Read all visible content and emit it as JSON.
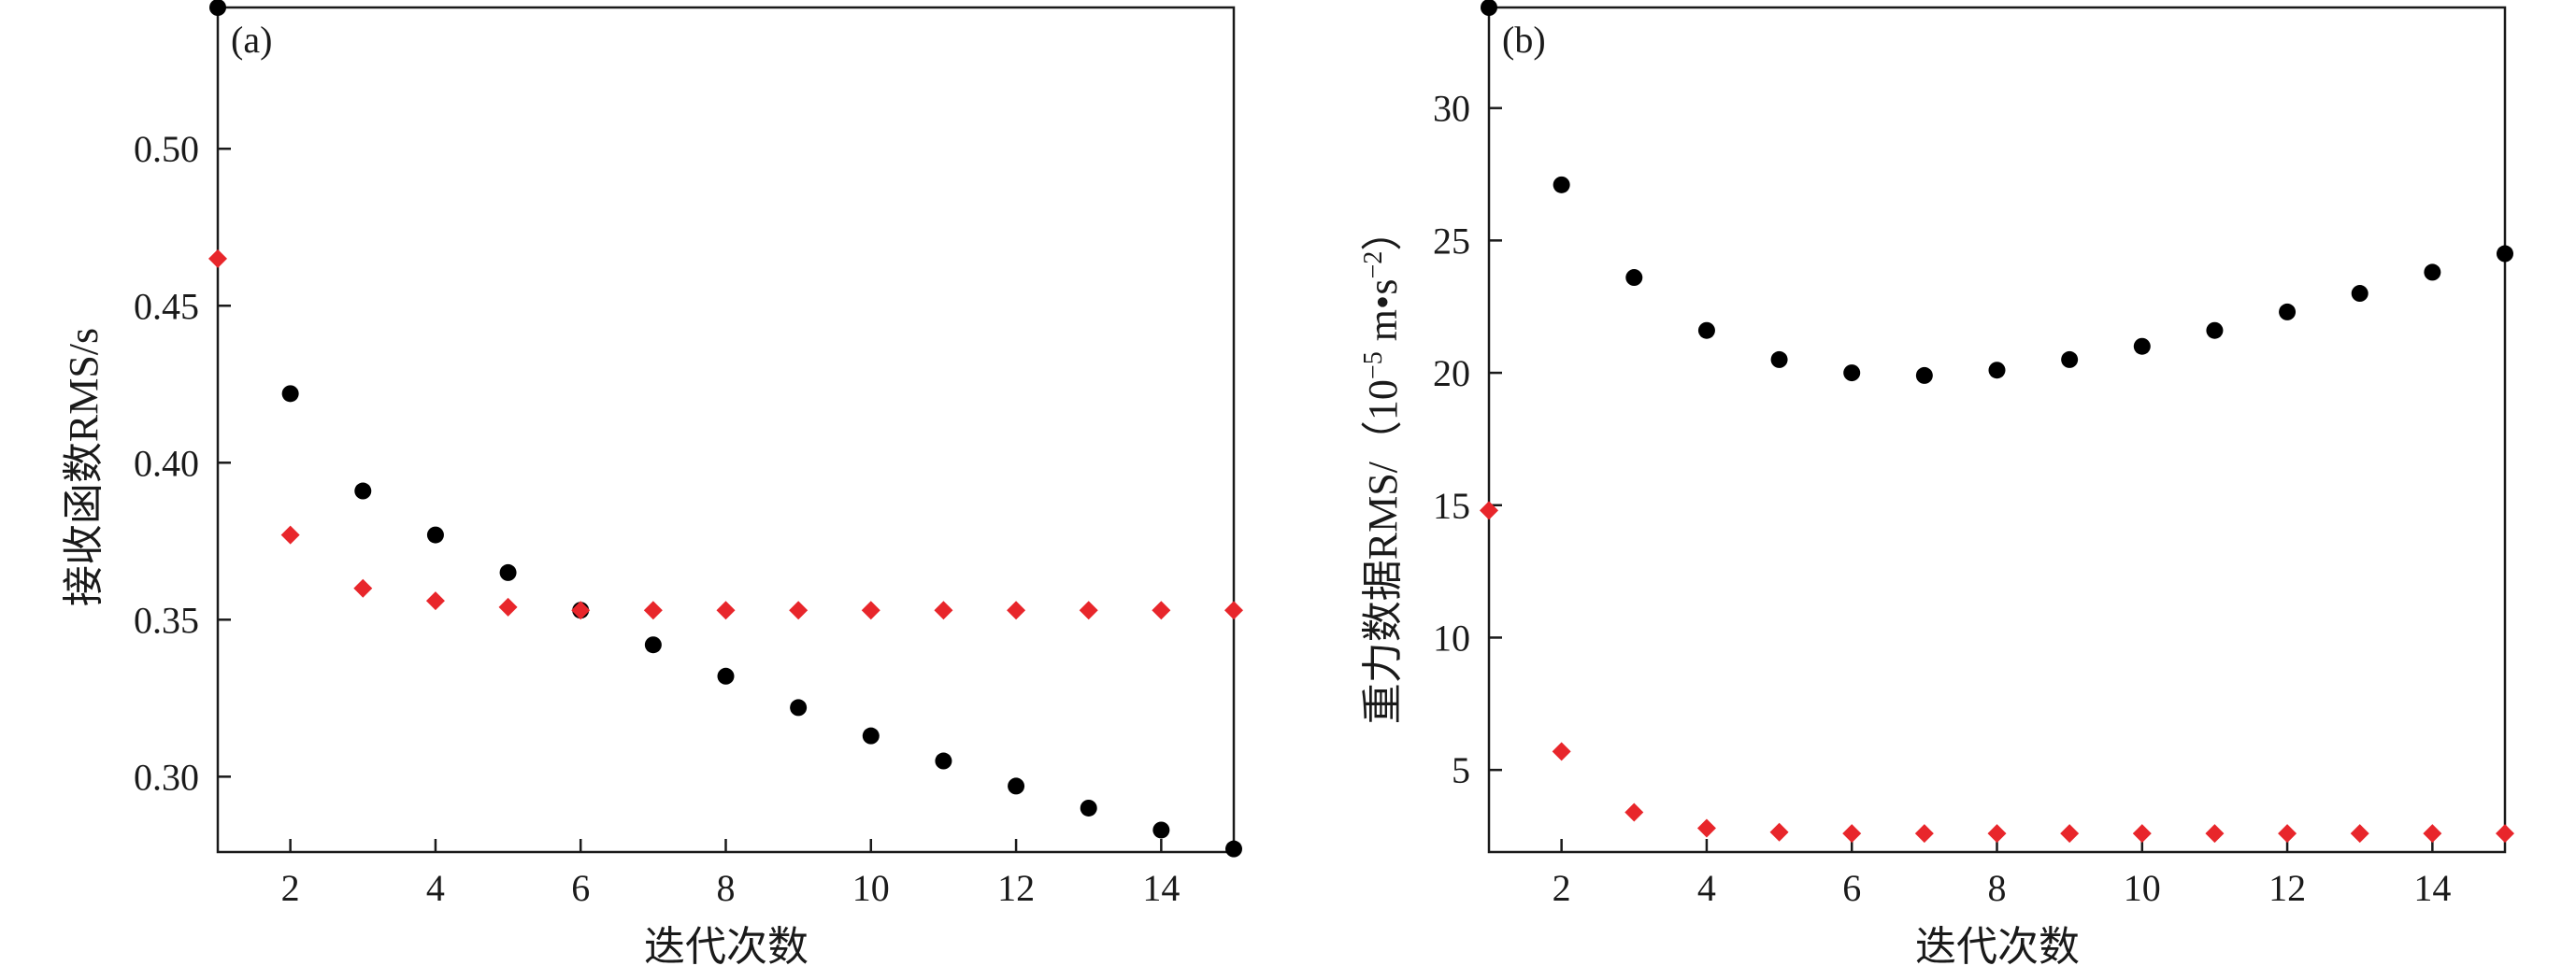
{
  "chart_data": [
    {
      "type": "scatter",
      "panel_label": "(a)",
      "xlabel": "迭代次数",
      "ylabel": "接收函数RMS/s",
      "xlim": [
        1,
        15
      ],
      "ylim": [
        0.276,
        0.545
      ],
      "xticks": [
        "2",
        "4",
        "6",
        "8",
        "10",
        "12",
        "14"
      ],
      "yticks": [
        "0.30",
        "0.35",
        "0.40",
        "0.45",
        "0.50"
      ],
      "series": [
        {
          "marker": "circle",
          "color": "#000000",
          "x": [
            1,
            2,
            3,
            4,
            5,
            6,
            7,
            8,
            9,
            10,
            11,
            12,
            13,
            14,
            15
          ],
          "y": [
            0.545,
            0.422,
            0.391,
            0.377,
            0.365,
            0.353,
            0.342,
            0.332,
            0.322,
            0.313,
            0.305,
            0.297,
            0.29,
            0.283,
            0.277
          ]
        },
        {
          "marker": "diamond",
          "color": "#e8262b",
          "x": [
            1,
            2,
            3,
            4,
            5,
            6,
            7,
            8,
            9,
            10,
            11,
            12,
            13,
            14,
            15
          ],
          "y": [
            0.465,
            0.377,
            0.36,
            0.356,
            0.354,
            0.353,
            0.353,
            0.353,
            0.353,
            0.353,
            0.353,
            0.353,
            0.353,
            0.353,
            0.353
          ]
        }
      ]
    },
    {
      "type": "scatter",
      "panel_label": "(b)",
      "xlabel": "迭代次数",
      "ylabel_main": "重力数据RMS/（10",
      "ylabel_exp1": "−5",
      "ylabel_mid": " m•s",
      "ylabel_exp2": "−2",
      "ylabel_end": "）",
      "xlim": [
        1,
        15
      ],
      "ylim": [
        1.9,
        33.8
      ],
      "xticks": [
        "2",
        "4",
        "6",
        "8",
        "10",
        "12",
        "14"
      ],
      "yticks": [
        "5",
        "10",
        "15",
        "20",
        "25",
        "30"
      ],
      "series": [
        {
          "marker": "circle",
          "color": "#000000",
          "x": [
            1,
            2,
            3,
            4,
            5,
            6,
            7,
            8,
            9,
            10,
            11,
            12,
            13,
            14,
            15
          ],
          "y": [
            33.8,
            27.1,
            23.6,
            21.6,
            20.5,
            20.0,
            19.9,
            20.1,
            20.5,
            21.0,
            21.6,
            22.3,
            23.0,
            23.8,
            24.5
          ]
        },
        {
          "marker": "diamond",
          "color": "#e8262b",
          "x": [
            1,
            2,
            3,
            4,
            5,
            6,
            7,
            8,
            9,
            10,
            11,
            12,
            13,
            14,
            15
          ],
          "y": [
            14.8,
            5.7,
            3.4,
            2.8,
            2.65,
            2.6,
            2.6,
            2.6,
            2.6,
            2.6,
            2.6,
            2.6,
            2.6,
            2.6,
            2.6
          ]
        }
      ]
    }
  ]
}
